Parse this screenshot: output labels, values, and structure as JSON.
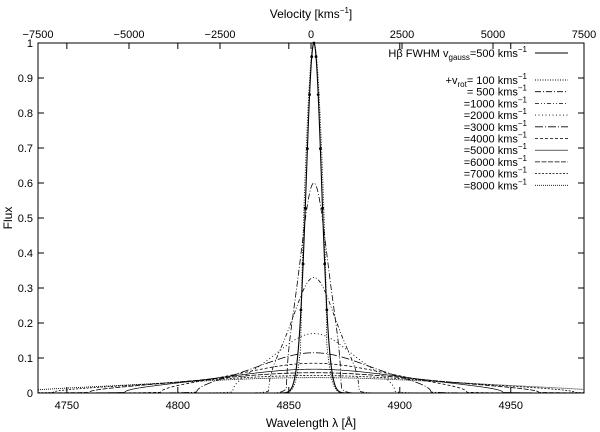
{
  "chart_data": {
    "type": "line",
    "title": "",
    "xlabel": "Wavelength λ [Å]",
    "ylabel": "Flux",
    "x2label": "Velocity [kms⁻¹]",
    "xlim": [
      4737,
      4983
    ],
    "ylim": [
      0,
      1
    ],
    "x2lim": [
      -7500,
      7500
    ],
    "xticks": [
      4750,
      4800,
      4850,
      4900,
      4950
    ],
    "yticks": [
      0,
      0.1,
      0.2,
      0.3,
      0.4,
      0.5,
      0.6,
      0.7,
      0.8,
      0.9,
      1
    ],
    "x2ticks": [
      -7500,
      -5000,
      -2500,
      0,
      2500,
      5000,
      7500
    ],
    "line_center": 4861.3,
    "grid": false,
    "legend_position": "top-right",
    "legend_header": "+v",
    "legend_header_sub": "rot",
    "series": [
      {
        "name": "Hβ FWHM v",
        "name_sub": "gauss",
        "name_tail": "=500 kms",
        "name_sup": "−1",
        "vrot": 0,
        "peak": 1.0,
        "dash": "",
        "stroke_width": 1.1
      },
      {
        "name": "=  100 kms",
        "name_sup": "−1",
        "vrot": 100,
        "peak": 1.0,
        "dash": "1,1.5",
        "stroke_width": 0.9
      },
      {
        "name": "=  500 kms",
        "name_sup": "−1",
        "vrot": 500,
        "peak": 0.6,
        "dash": "6,2,1,2",
        "stroke_width": 0.8
      },
      {
        "name": "=1000 kms",
        "name_sup": "−1",
        "vrot": 1000,
        "peak": 0.33,
        "dash": "4,2,1,2,1,2",
        "stroke_width": 0.8
      },
      {
        "name": "=2000 kms",
        "name_sup": "−1",
        "vrot": 2000,
        "peak": 0.17,
        "dash": "1,2.5",
        "stroke_width": 0.9
      },
      {
        "name": "=3000 kms",
        "name_sup": "−1",
        "vrot": 3000,
        "peak": 0.115,
        "dash": "8,2,1,2",
        "stroke_width": 0.8
      },
      {
        "name": "=4000 kms",
        "name_sup": "−1",
        "vrot": 4000,
        "peak": 0.085,
        "dash": "3,2",
        "stroke_width": 0.8
      },
      {
        "name": "=5000 kms",
        "name_sup": "−1",
        "vrot": 5000,
        "peak": 0.068,
        "dash": "",
        "stroke_width": 0.7
      },
      {
        "name": "=6000 kms",
        "name_sup": "−1",
        "vrot": 6000,
        "peak": 0.058,
        "dash": "5,1.5",
        "stroke_width": 0.8
      },
      {
        "name": "=7000 kms",
        "name_sup": "−1",
        "vrot": 7000,
        "peak": 0.05,
        "dash": "2,1.5",
        "stroke_width": 0.8
      },
      {
        "name": "=8000 kms",
        "name_sup": "−1",
        "vrot": 8000,
        "peak": 0.044,
        "dash": "1,1",
        "stroke_width": 0.9
      }
    ]
  }
}
